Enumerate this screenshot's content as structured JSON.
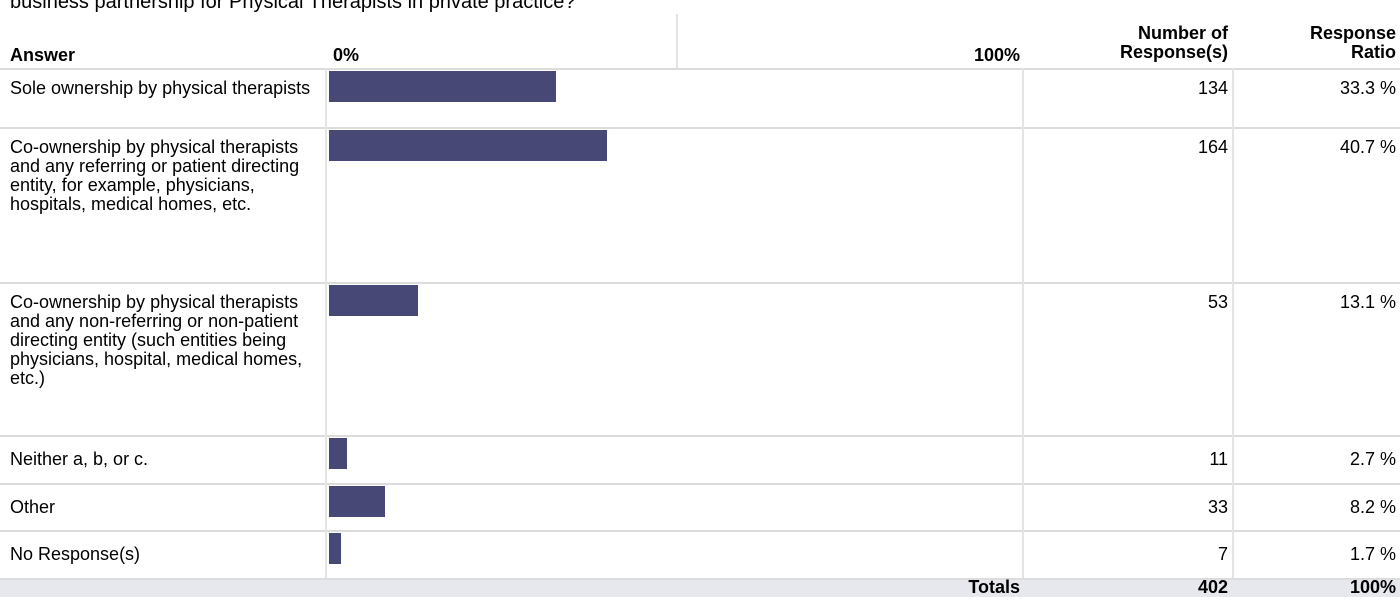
{
  "title": "business partnership for Physical Therapists in private practice?",
  "header": {
    "answer": "Answer",
    "scale": [
      {
        "value": 0,
        "label": "0%"
      },
      {
        "value": 100,
        "label": "100%"
      }
    ],
    "count": "Number of Response(s)",
    "ratio": "Response Ratio"
  },
  "rows": [
    {
      "answer": "Sole ownership by physical therapists",
      "count": 134,
      "ratio": 33.3,
      "ratio_label": "33.3 %"
    },
    {
      "answer": "Co-ownership by physical therapists and any referring or patient directing entity, for example, physicians, hospitals, medical homes, etc.",
      "count": 164,
      "ratio": 40.7,
      "ratio_label": "40.7 %"
    },
    {
      "answer": "Co-ownership by physical therapists and any non-referring or non-patient directing entity (such entities being physicians, hospital, medical homes, etc.)",
      "count": 53,
      "ratio": 13.1,
      "ratio_label": "13.1 %"
    },
    {
      "answer": "Neither a, b, or c.",
      "count": 11,
      "ratio": 2.7,
      "ratio_label": "2.7 %"
    },
    {
      "answer": "Other",
      "count": 33,
      "ratio": 8.2,
      "ratio_label": "8.2 %"
    },
    {
      "answer": "No Response(s)",
      "count": 7,
      "ratio": 1.7,
      "ratio_label": "1.7 %"
    }
  ],
  "totals": {
    "label": "Totals",
    "count": 402,
    "ratio_label": "100%"
  }
}
